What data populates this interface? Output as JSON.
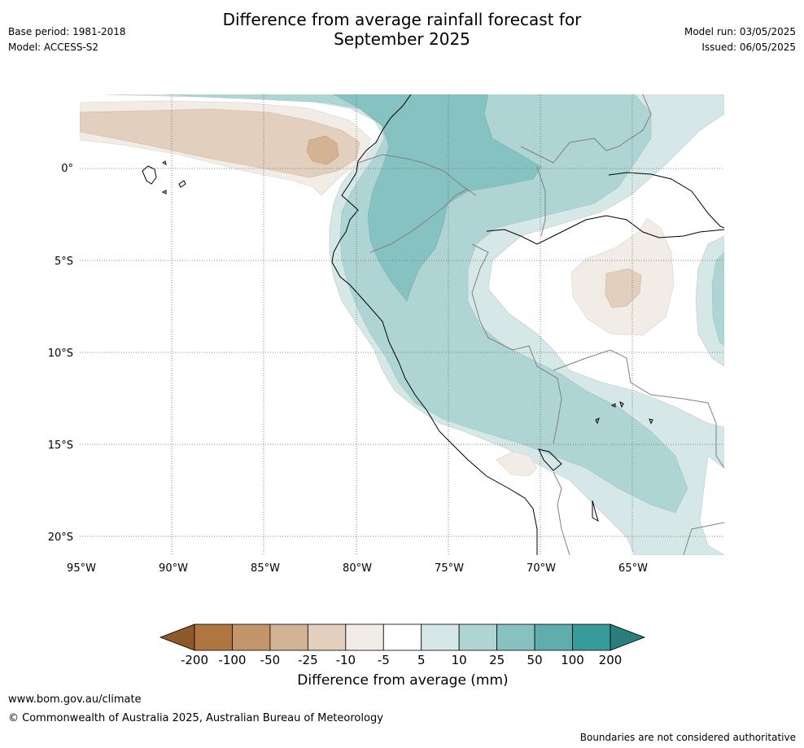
{
  "header": {
    "title_line1": "Difference from average rainfall forecast for",
    "title_line2": "September 2025",
    "base_period": "Base period: 1981-2018",
    "model": "Model: ACCESS-S2",
    "model_run": "Model run: 03/05/2025",
    "issued": "Issued: 06/05/2025"
  },
  "map": {
    "lon_range": [
      -95,
      -60
    ],
    "lat_range": [
      -21,
      4
    ],
    "lat_ticks": [
      {
        "value": 0,
        "label": "0°"
      },
      {
        "value": -5,
        "label": "5°S"
      },
      {
        "value": -10,
        "label": "10°S"
      },
      {
        "value": -15,
        "label": "15°S"
      },
      {
        "value": -20,
        "label": "20°S"
      }
    ],
    "lon_ticks": [
      {
        "value": -95,
        "label": "95°W"
      },
      {
        "value": -90,
        "label": "90°W"
      },
      {
        "value": -85,
        "label": "85°W"
      },
      {
        "value": -80,
        "label": "80°W"
      },
      {
        "value": -75,
        "label": "75°W"
      },
      {
        "value": -70,
        "label": "70°W"
      },
      {
        "value": -65,
        "label": "65°W"
      }
    ]
  },
  "colorbar": {
    "title": "Difference from average (mm)",
    "labels": [
      "-200",
      "-100",
      "-50",
      "-25",
      "-10",
      "-5",
      "5",
      "10",
      "25",
      "50",
      "100",
      "200"
    ],
    "colors": [
      "#8c5a2a",
      "#b07640",
      "#c2956b",
      "#d3b393",
      "#e3cfbe",
      "#f1ece6",
      "#ffffff",
      "#d5e8e7",
      "#aed5d4",
      "#86c2c1",
      "#5eaead",
      "#369b99",
      "#2a7f7d"
    ]
  },
  "footer": {
    "url": "www.bom.gov.au/climate",
    "copyright": "© Commonwealth of Australia 2025, Australian Bureau of Meteorology",
    "note": "Boundaries are not considered authoritative"
  }
}
